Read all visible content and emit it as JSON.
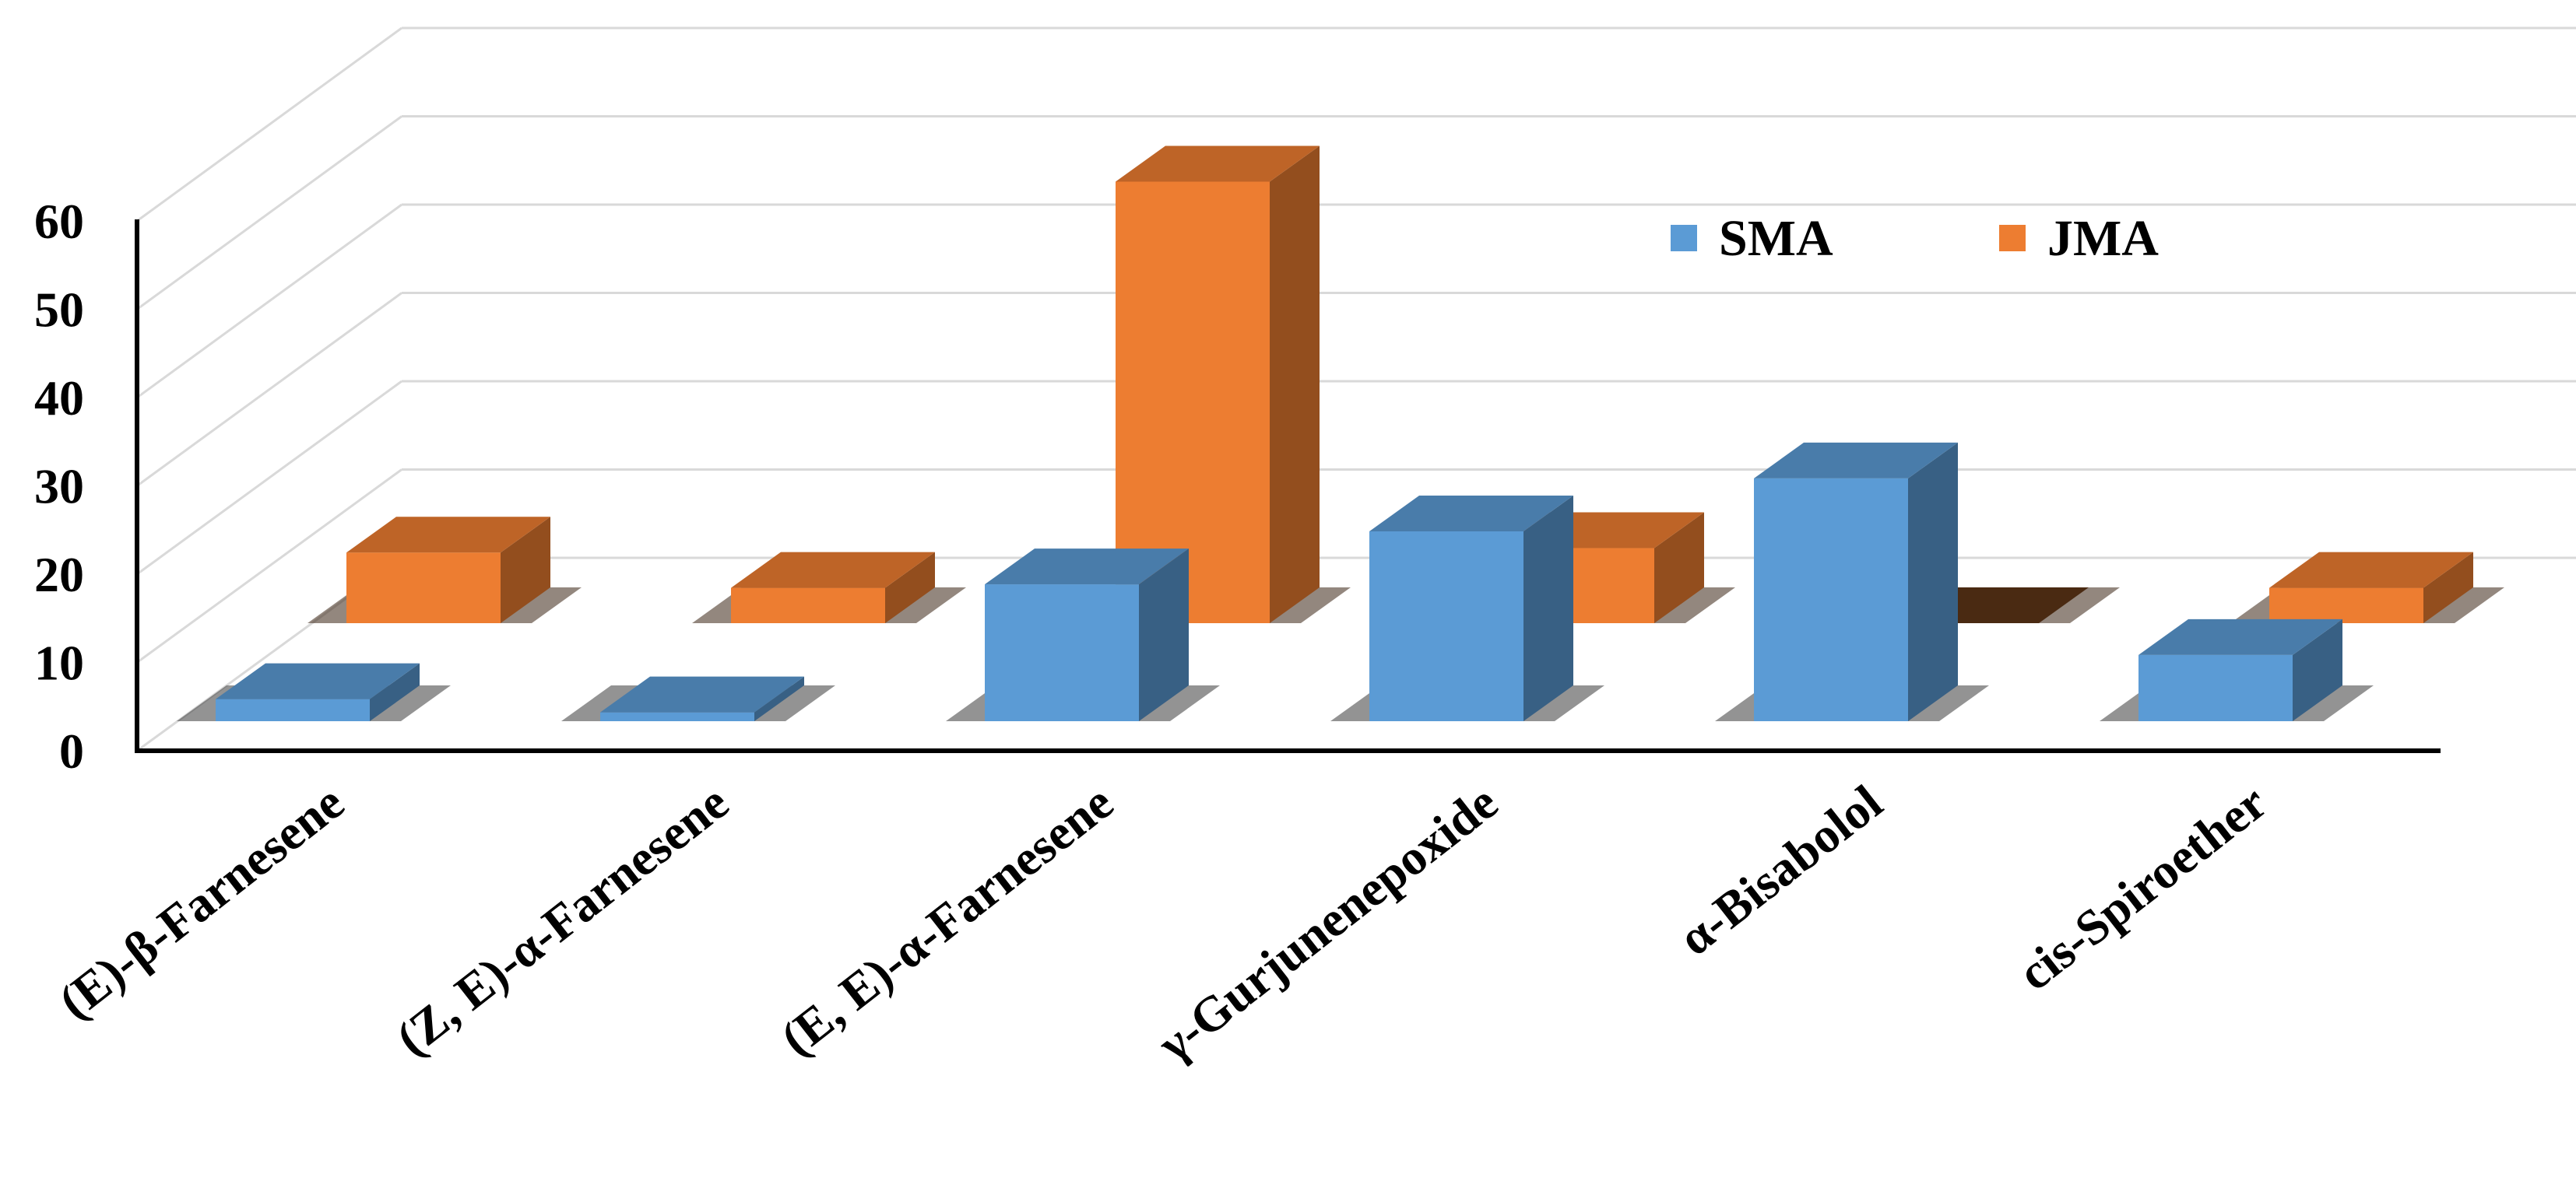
{
  "chart_data": {
    "type": "bar",
    "categories": [
      "(E)-β-Farnesene",
      "(Z, E)-α-Farnesene",
      "(E, E)-α-Farnesene",
      "γ-Gurjunenepoxide",
      "α-Bisabolol",
      "cis-Spiroether"
    ],
    "series": [
      {
        "name": "SMA",
        "values": [
          2.5,
          1,
          15.5,
          21.5,
          27.5,
          7.5
        ],
        "color": "#5b9bd5"
      },
      {
        "name": "JMA",
        "values": [
          8,
          4,
          50,
          8.5,
          0,
          4
        ],
        "color": "#ed7d31"
      }
    ],
    "y_ticks": [
      "0",
      "10",
      "20",
      "30",
      "40",
      "50",
      "60"
    ],
    "ylim": [
      0,
      60
    ],
    "title": "",
    "xlabel": "",
    "ylabel": "",
    "grid": true,
    "legend_position": "top-right",
    "style": "3d-clustered-column"
  }
}
